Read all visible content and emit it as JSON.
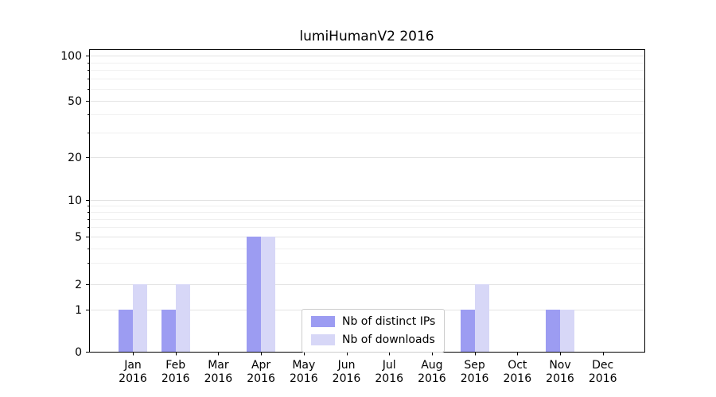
{
  "chart_data": {
    "type": "bar",
    "title": "lumiHumanV2 2016",
    "categories": [
      "Jan",
      "Feb",
      "Mar",
      "Apr",
      "May",
      "Jun",
      "Jul",
      "Aug",
      "Sep",
      "Oct",
      "Nov",
      "Dec"
    ],
    "year": "2016",
    "series": [
      {
        "name": "Nb of distinct IPs",
        "color": "#9c9cf2",
        "values": [
          1,
          1,
          0,
          5,
          0,
          0,
          0,
          0,
          1,
          0,
          1,
          0
        ]
      },
      {
        "name": "Nb of downloads",
        "color": "#d7d7f7",
        "values": [
          2,
          2,
          0,
          5,
          0,
          0,
          0,
          0,
          2,
          0,
          1,
          0
        ]
      }
    ],
    "yticks": [
      0,
      1,
      2,
      5,
      10,
      20,
      50,
      100
    ],
    "ylim": [
      0,
      100
    ],
    "yscale": "log-like with zero baseline",
    "grid": "horizontal major and minor gridlines",
    "legend": {
      "position": "inside bottom-center"
    }
  }
}
